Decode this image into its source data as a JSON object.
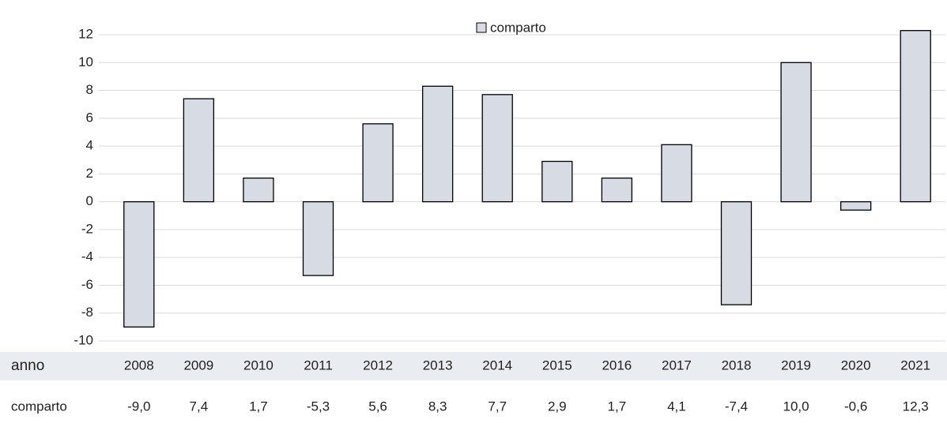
{
  "chart_data": {
    "type": "bar",
    "x_label": "anno",
    "categories": [
      "2008",
      "2009",
      "2010",
      "2011",
      "2012",
      "2013",
      "2014",
      "2015",
      "2016",
      "2017",
      "2018",
      "2019",
      "2020",
      "2021"
    ],
    "series": [
      {
        "name": "comparto",
        "color": "#d6dbe4",
        "values": [
          -9.0,
          7.4,
          1.7,
          -5.3,
          5.6,
          8.3,
          7.7,
          2.9,
          1.7,
          4.1,
          -7.4,
          10.0,
          -0.6,
          12.3
        ],
        "value_labels": [
          "-9,0",
          "7,4",
          "1,7",
          "-5,3",
          "5,6",
          "8,3",
          "7,7",
          "2,9",
          "1,7",
          "4,1",
          "-7,4",
          "10,0",
          "-0,6",
          "12,3"
        ]
      }
    ],
    "ylim": [
      -10,
      12
    ],
    "yticks": [
      -10,
      -8,
      -6,
      -4,
      -2,
      0,
      2,
      4,
      6,
      8,
      10,
      12
    ],
    "grid": true,
    "legend": "top"
  }
}
